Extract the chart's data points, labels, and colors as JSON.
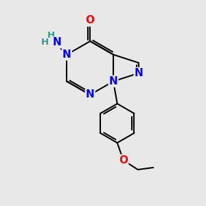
{
  "bg_color": "#e8e8e8",
  "atom_colors": {
    "N": "#0000ff",
    "O": "#ff0000",
    "C": "#000000",
    "H": "#2aa090"
  },
  "bond_color": "#000000",
  "bond_width": 1.5,
  "font_size_atoms": 11,
  "font_size_H": 9.5,
  "scale": 1.3
}
